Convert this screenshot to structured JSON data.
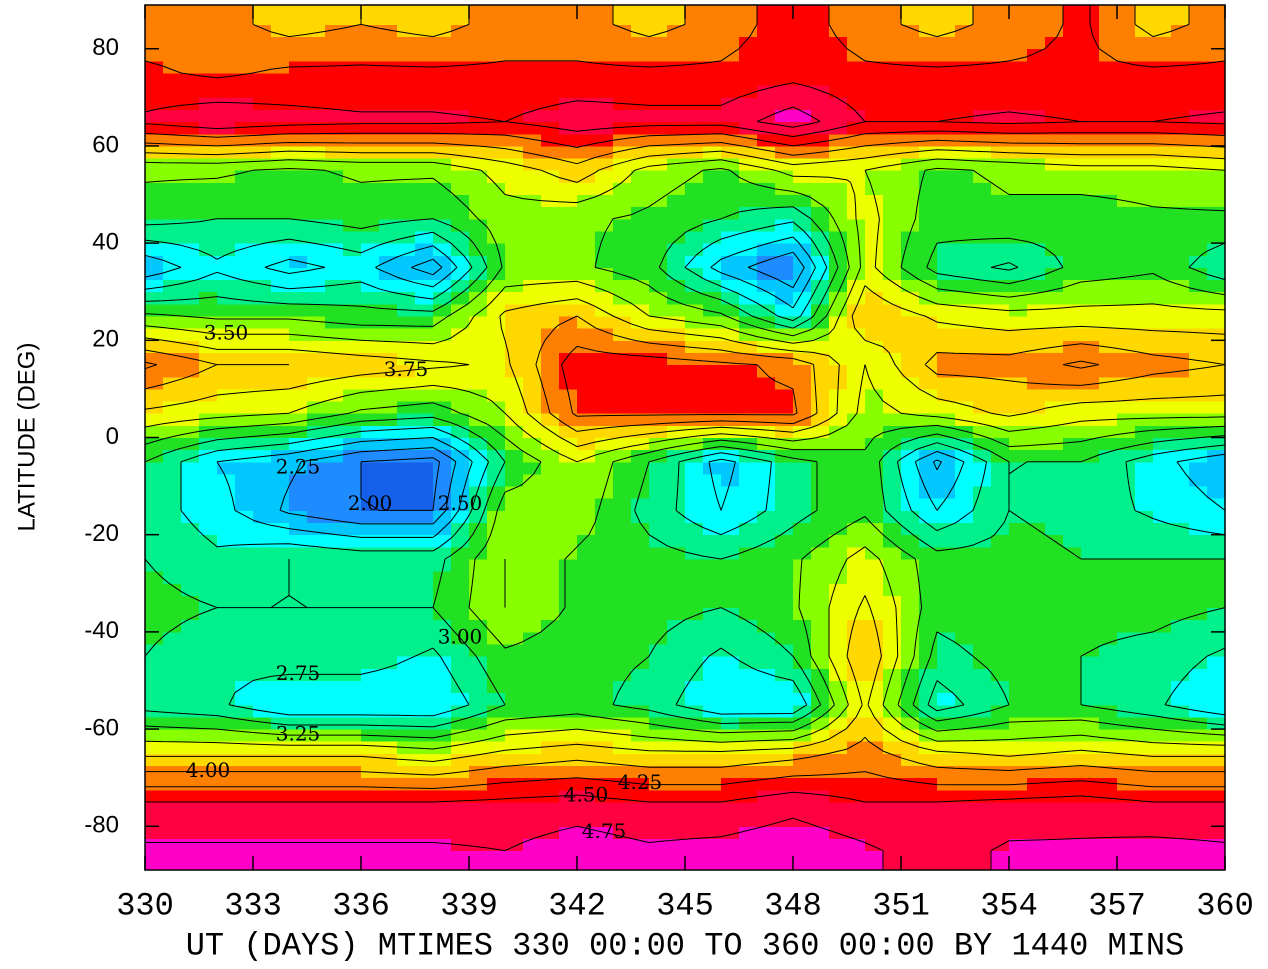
{
  "chart_data": {
    "type": "contour",
    "xlabel": "UT (DAYS) MTIMES 330 00:00 TO 360 00:00 BY 1440 MINS",
    "ylabel": "LATITUDE (DEG)",
    "x": [
      330,
      332,
      334,
      336,
      338,
      340,
      342,
      344,
      346,
      348,
      350,
      352,
      354,
      356,
      358,
      360
    ],
    "y": [
      -85,
      -75,
      -65,
      -55,
      -45,
      -35,
      -25,
      -15,
      -5,
      5,
      15,
      25,
      35,
      45,
      55,
      65,
      75,
      85
    ],
    "z": [
      [
        4.8,
        4.8,
        4.8,
        4.8,
        4.8,
        4.75,
        4.9,
        4.8,
        4.85,
        4.95,
        4.8,
        4.6,
        4.8,
        4.8,
        4.85,
        4.8
      ],
      [
        4.5,
        4.5,
        4.5,
        4.5,
        4.5,
        4.55,
        4.6,
        4.5,
        4.5,
        4.65,
        4.5,
        4.5,
        4.55,
        4.6,
        4.5,
        4.5
      ],
      [
        3.7,
        3.7,
        3.7,
        3.7,
        3.6,
        3.8,
        3.9,
        3.8,
        3.8,
        3.9,
        4.1,
        3.8,
        3.7,
        3.8,
        3.7,
        3.7
      ],
      [
        2.9,
        2.8,
        2.5,
        2.5,
        2.5,
        3.0,
        3.1,
        2.9,
        2.5,
        2.5,
        3.8,
        2.6,
        3.0,
        3.0,
        2.8,
        2.5
      ],
      [
        3.0,
        2.8,
        2.9,
        2.9,
        2.7,
        3.2,
        3.1,
        3.0,
        2.7,
        3.0,
        4.0,
        2.9,
        3.1,
        3.0,
        2.9,
        2.7
      ],
      [
        3.1,
        3.0,
        3.0,
        3.0,
        3.0,
        3.5,
        3.2,
        3.1,
        3.0,
        3.2,
        3.8,
        3.1,
        3.2,
        3.1,
        3.1,
        3.0
      ],
      [
        3.0,
        2.8,
        3.0,
        2.9,
        2.9,
        3.5,
        3.2,
        3.1,
        3.0,
        3.2,
        3.6,
        3.1,
        3.1,
        3.0,
        3.0,
        3.0
      ],
      [
        2.9,
        2.6,
        2.2,
        2.0,
        2.0,
        3.4,
        3.4,
        2.9,
        2.5,
        2.9,
        3.2,
        2.5,
        3.0,
        2.9,
        2.7,
        2.5
      ],
      [
        3.0,
        2.5,
        2.3,
        2.0,
        1.9,
        3.0,
        3.5,
        3.0,
        2.4,
        2.9,
        3.2,
        2.2,
        3.0,
        3.0,
        2.6,
        2.3
      ],
      [
        3.7,
        3.6,
        3.5,
        3.2,
        3.1,
        3.5,
        4.3,
        4.3,
        4.3,
        4.3,
        3.4,
        3.6,
        3.8,
        3.6,
        3.6,
        3.6
      ],
      [
        4.3,
        4.0,
        4.0,
        3.9,
        3.8,
        3.7,
        4.4,
        4.4,
        4.3,
        4.2,
        3.5,
        4.1,
        4.1,
        4.3,
        4.1,
        4.0
      ],
      [
        3.3,
        3.2,
        3.2,
        3.1,
        3.1,
        3.8,
        4.0,
        3.5,
        3.3,
        2.6,
        4.0,
        3.7,
        3.6,
        3.6,
        3.6,
        3.6
      ],
      [
        2.3,
        2.7,
        2.4,
        2.6,
        2.1,
        3.3,
        3.3,
        3.1,
        2.4,
        2.0,
        3.6,
        2.9,
        2.7,
        3.1,
        3.2,
        2.8
      ],
      [
        3.1,
        3.0,
        3.0,
        3.1,
        3.0,
        3.4,
        3.3,
        3.2,
        3.0,
        2.8,
        3.6,
        3.1,
        3.2,
        3.1,
        3.2,
        3.2
      ],
      [
        3.3,
        3.3,
        3.2,
        3.3,
        3.3,
        3.6,
        3.9,
        3.4,
        3.2,
        3.6,
        3.5,
        3.2,
        3.3,
        3.4,
        3.4,
        3.5
      ],
      [
        4.55,
        4.7,
        4.6,
        4.55,
        4.55,
        4.5,
        4.65,
        4.6,
        4.6,
        4.9,
        4.5,
        4.5,
        4.55,
        4.5,
        4.5,
        4.55
      ],
      [
        4.3,
        4.2,
        4.3,
        4.3,
        4.3,
        4.3,
        4.3,
        4.3,
        4.3,
        4.4,
        4.3,
        4.3,
        4.3,
        4.3,
        4.3,
        4.3
      ],
      [
        4.1,
        4.1,
        3.9,
        4.0,
        3.9,
        4.1,
        4.1,
        3.9,
        4.1,
        4.4,
        4.1,
        3.9,
        4.1,
        4.3,
        3.9,
        4.1
      ]
    ],
    "levels": [
      {
        "value": 2,
        "label": "2.00"
      },
      {
        "value": 2.25,
        "label": "2.25"
      },
      {
        "value": 2.5,
        "label": "2.50"
      },
      {
        "value": 2.75,
        "label": "2.75"
      },
      {
        "value": 3,
        "label": "3.00"
      },
      {
        "value": 3.25,
        "label": "3.25"
      },
      {
        "value": 3.5,
        "label": "3.50"
      },
      {
        "value": 3.75,
        "label": "3.75"
      },
      {
        "value": 4,
        "label": "4.00"
      },
      {
        "value": 4.25,
        "label": "4.25"
      },
      {
        "value": 4.5,
        "label": "4.50"
      },
      {
        "value": 4.75,
        "label": "4.75"
      }
    ],
    "colors": [
      "#1560e8",
      "#1e8cff",
      "#00c8ff",
      "#00ffff",
      "#00f08c",
      "#22e022",
      "#88ff00",
      "#eeff00",
      "#ffd800",
      "#ff8000",
      "#ff0000",
      "#ff0040",
      "#ff00c8"
    ],
    "xlim": [
      330,
      360
    ],
    "xticks": [
      330,
      333,
      336,
      339,
      342,
      345,
      348,
      351,
      354,
      357,
      360
    ],
    "ylim": [
      -89,
      89
    ],
    "yticks": [
      -80,
      -60,
      -40,
      -20,
      0,
      20,
      40,
      60,
      80
    ]
  }
}
